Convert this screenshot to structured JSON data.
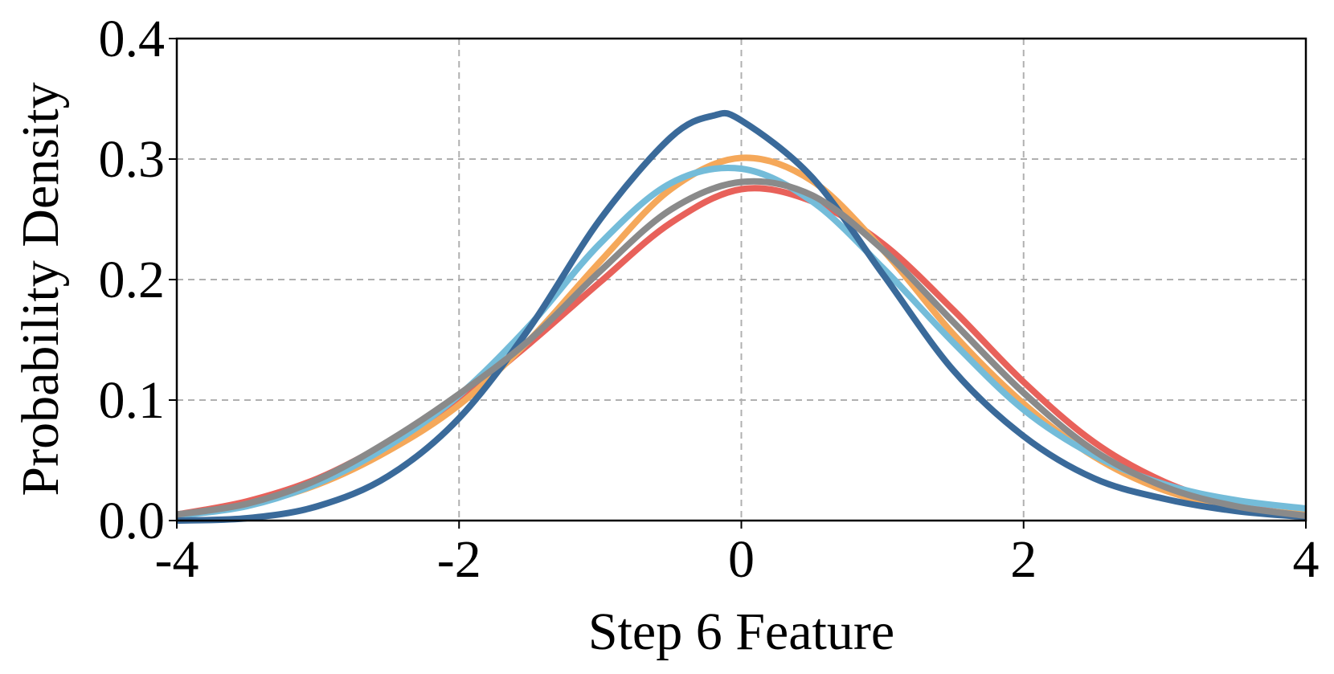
{
  "chart_data": {
    "type": "line",
    "xlabel": "Step 6 Feature",
    "ylabel": "Probability Density",
    "xlim": [
      -4,
      4
    ],
    "ylim": [
      0,
      0.4
    ],
    "x_ticks": [
      "-4",
      "-2",
      "0",
      "2",
      "4"
    ],
    "y_ticks": [
      "0.0",
      "0.1",
      "0.2",
      "0.3",
      "0.4"
    ],
    "grid": true,
    "legend": "none",
    "series": [
      {
        "color": "#e8615a",
        "x": [
          -4.0,
          -3.5,
          -3.0,
          -2.5,
          -2.0,
          -1.5,
          -1.0,
          -0.5,
          0.0,
          0.5,
          1.0,
          1.5,
          2.0,
          2.5,
          3.0,
          3.5,
          4.0
        ],
        "y": [
          0.005,
          0.016,
          0.035,
          0.065,
          0.1,
          0.147,
          0.198,
          0.247,
          0.275,
          0.265,
          0.23,
          0.175,
          0.115,
          0.065,
          0.032,
          0.013,
          0.004
        ]
      },
      {
        "color": "#f5a85a",
        "x": [
          -4.0,
          -3.5,
          -3.0,
          -2.5,
          -2.0,
          -1.5,
          -1.0,
          -0.5,
          0.0,
          0.5,
          1.0,
          1.5,
          2.0,
          2.5,
          3.0,
          3.5,
          4.0
        ],
        "y": [
          0.004,
          0.013,
          0.03,
          0.058,
          0.096,
          0.15,
          0.215,
          0.275,
          0.301,
          0.282,
          0.225,
          0.155,
          0.097,
          0.053,
          0.025,
          0.011,
          0.005
        ]
      },
      {
        "color": "#74bcd9",
        "x": [
          -4.0,
          -3.5,
          -3.0,
          -2.5,
          -2.0,
          -1.5,
          -1.0,
          -0.5,
          0.0,
          0.5,
          1.0,
          1.5,
          2.0,
          2.5,
          3.0,
          3.5,
          4.0
        ],
        "y": [
          0.004,
          0.012,
          0.031,
          0.062,
          0.104,
          0.162,
          0.23,
          0.28,
          0.292,
          0.265,
          0.21,
          0.148,
          0.092,
          0.054,
          0.03,
          0.017,
          0.01
        ]
      },
      {
        "color": "#3a6a9a",
        "x": [
          -4.0,
          -3.5,
          -3.0,
          -2.5,
          -2.0,
          -1.5,
          -1.0,
          -0.5,
          -0.2,
          0.0,
          0.5,
          1.0,
          1.5,
          2.0,
          2.5,
          3.0,
          3.5,
          4.0
        ],
        "y": [
          0.0,
          0.002,
          0.012,
          0.037,
          0.085,
          0.16,
          0.25,
          0.318,
          0.336,
          0.332,
          0.285,
          0.205,
          0.125,
          0.07,
          0.035,
          0.018,
          0.008,
          0.003
        ]
      },
      {
        "color": "#8a8a8a",
        "x": [
          -4.0,
          -3.5,
          -3.0,
          -2.5,
          -2.0,
          -1.5,
          -1.0,
          -0.5,
          0.0,
          0.5,
          1.0,
          1.5,
          2.0,
          2.5,
          3.0,
          3.5,
          4.0
        ],
        "y": [
          0.005,
          0.014,
          0.034,
          0.066,
          0.105,
          0.15,
          0.207,
          0.258,
          0.281,
          0.27,
          0.225,
          0.165,
          0.106,
          0.058,
          0.028,
          0.012,
          0.004
        ]
      }
    ]
  }
}
